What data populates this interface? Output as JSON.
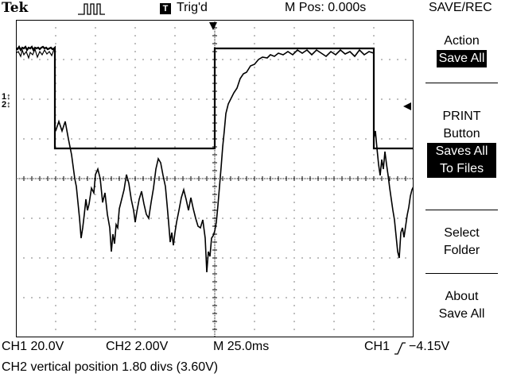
{
  "header": {
    "brand": "Tek",
    "acquire_icon": "pulse-acquire-icon",
    "trigger_badge": "T",
    "trigger_status": "Trig'd",
    "main_position": "M Pos: 0.000s",
    "menu_title": "SAVE/REC"
  },
  "menu": {
    "action_label": "Action",
    "action_value": "Save All",
    "print_line1": "PRINT",
    "print_line2": "Button",
    "print_value_line1": "Saves All",
    "print_value_line2": "To Files",
    "select_line1": "Select",
    "select_line2": "Folder",
    "about_line1": "About",
    "about_line2": "Save All"
  },
  "footer": {
    "ch1_scale": "CH1  20.0V",
    "ch2_scale": "CH2  2.00V",
    "timebase": "M 25.0ms",
    "trigger_source": "CH1",
    "trigger_level": "−4.15V",
    "message": "CH2 vertical position 1.80 divs (3.60V)"
  },
  "markers": {
    "ch1_marker": "1",
    "ch2_marker": "2"
  },
  "colors": {
    "background": "#ffffff",
    "trace": "#000000"
  }
}
